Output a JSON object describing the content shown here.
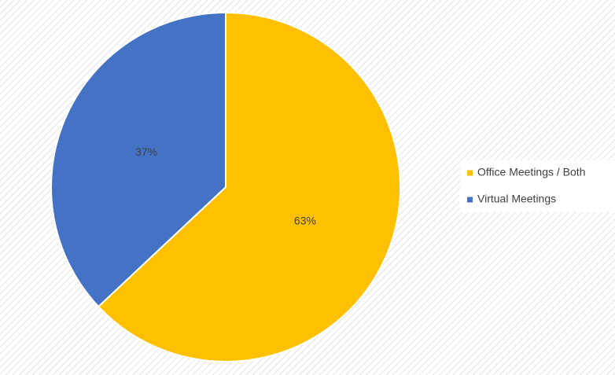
{
  "chart_data": {
    "type": "pie",
    "categories": [
      "Office Meetings / Both",
      "Virtual Meetings"
    ],
    "values": [
      63,
      37
    ],
    "value_labels": [
      "63%",
      "37%"
    ],
    "colors": [
      "#ffc000",
      "#4472c4"
    ],
    "legend": "right"
  }
}
